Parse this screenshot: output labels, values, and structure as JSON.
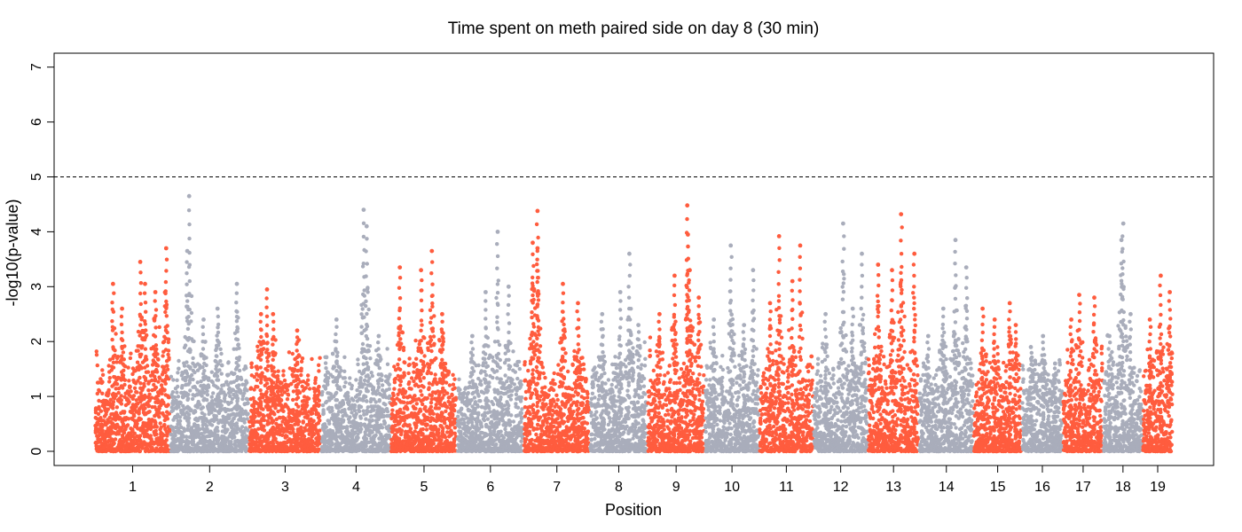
{
  "chart_data": {
    "type": "scatter",
    "title": "Time spent on meth paired side on day 8 (30 min)",
    "xlabel": "Position",
    "ylabel": "-log10(p-value)",
    "ylim": [
      0,
      7
    ],
    "yticks": [
      "0",
      "1",
      "2",
      "3",
      "4",
      "5",
      "6",
      "7"
    ],
    "threshold": 5,
    "threshold_style": "dashed",
    "colors": [
      "#FF5C3E",
      "#A9ADBB"
    ],
    "xlim": [
      0,
      2045
    ],
    "chromosomes": [
      {
        "label": "1",
        "start": 75,
        "end": 200,
        "peaks": [
          {
            "x": 105,
            "y": 3.05
          },
          {
            "x": 120,
            "y": 2.6
          },
          {
            "x": 150,
            "y": 3.45
          },
          {
            "x": 158,
            "y": 3.05
          },
          {
            "x": 175,
            "y": 2.9
          },
          {
            "x": 193,
            "y": 3.7
          }
        ]
      },
      {
        "label": "2",
        "start": 200,
        "end": 330,
        "peaks": [
          {
            "x": 231,
            "y": 4.65
          },
          {
            "x": 228,
            "y": 3.65
          },
          {
            "x": 255,
            "y": 2.4
          },
          {
            "x": 278,
            "y": 2.6
          },
          {
            "x": 310,
            "y": 3.05
          }
        ]
      },
      {
        "label": "3",
        "start": 330,
        "end": 450,
        "peaks": [
          {
            "x": 350,
            "y": 2.5
          },
          {
            "x": 360,
            "y": 2.95
          },
          {
            "x": 370,
            "y": 2.5
          },
          {
            "x": 410,
            "y": 2.2
          }
        ]
      },
      {
        "label": "4",
        "start": 450,
        "end": 565,
        "peaks": [
          {
            "x": 475,
            "y": 2.4
          },
          {
            "x": 520,
            "y": 4.4
          },
          {
            "x": 525,
            "y": 4.1
          },
          {
            "x": 545,
            "y": 2.1
          }
        ]
      },
      {
        "label": "5",
        "start": 565,
        "end": 675,
        "peaks": [
          {
            "x": 580,
            "y": 3.35
          },
          {
            "x": 615,
            "y": 3.3
          },
          {
            "x": 633,
            "y": 3.65
          },
          {
            "x": 650,
            "y": 2.5
          }
        ]
      },
      {
        "label": "6",
        "start": 675,
        "end": 785,
        "peaks": [
          {
            "x": 700,
            "y": 2.1
          },
          {
            "x": 722,
            "y": 2.9
          },
          {
            "x": 742,
            "y": 4.0
          },
          {
            "x": 760,
            "y": 3.0
          }
        ]
      },
      {
        "label": "7",
        "start": 785,
        "end": 895,
        "peaks": [
          {
            "x": 800,
            "y": 3.8
          },
          {
            "x": 808,
            "y": 3.7
          },
          {
            "x": 808,
            "y": 4.38
          },
          {
            "x": 850,
            "y": 3.05
          },
          {
            "x": 875,
            "y": 2.7
          }
        ]
      },
      {
        "label": "8",
        "start": 895,
        "end": 990,
        "peaks": [
          {
            "x": 915,
            "y": 2.5
          },
          {
            "x": 945,
            "y": 2.9
          },
          {
            "x": 960,
            "y": 3.6
          },
          {
            "x": 975,
            "y": 2.3
          }
        ]
      },
      {
        "label": "9",
        "start": 990,
        "end": 1085,
        "peaks": [
          {
            "x": 1010,
            "y": 2.5
          },
          {
            "x": 1035,
            "y": 3.2
          },
          {
            "x": 1056,
            "y": 4.48
          },
          {
            "x": 1057,
            "y": 3.95
          },
          {
            "x": 1060,
            "y": 3.3
          },
          {
            "x": 1075,
            "y": 2.8
          }
        ]
      },
      {
        "label": "10",
        "start": 1085,
        "end": 1175,
        "peaks": [
          {
            "x": 1100,
            "y": 2.4
          },
          {
            "x": 1128,
            "y": 3.75
          },
          {
            "x": 1150,
            "y": 2.3
          },
          {
            "x": 1165,
            "y": 3.3
          }
        ]
      },
      {
        "label": "11",
        "start": 1175,
        "end": 1265,
        "peaks": [
          {
            "x": 1193,
            "y": 2.7
          },
          {
            "x": 1208,
            "y": 3.92
          },
          {
            "x": 1230,
            "y": 3.1
          },
          {
            "x": 1243,
            "y": 3.75
          }
        ]
      },
      {
        "label": "12",
        "start": 1265,
        "end": 1355,
        "peaks": [
          {
            "x": 1285,
            "y": 2.5
          },
          {
            "x": 1314,
            "y": 4.15
          },
          {
            "x": 1330,
            "y": 2.6
          },
          {
            "x": 1345,
            "y": 3.6
          }
        ]
      },
      {
        "label": "13",
        "start": 1355,
        "end": 1440,
        "peaks": [
          {
            "x": 1372,
            "y": 3.4
          },
          {
            "x": 1395,
            "y": 3.3
          },
          {
            "x": 1410,
            "y": 4.32
          },
          {
            "x": 1432,
            "y": 3.6
          }
        ]
      },
      {
        "label": "14",
        "start": 1440,
        "end": 1530,
        "peaks": [
          {
            "x": 1455,
            "y": 2.1
          },
          {
            "x": 1480,
            "y": 2.6
          },
          {
            "x": 1500,
            "y": 3.85
          },
          {
            "x": 1518,
            "y": 3.35
          }
        ]
      },
      {
        "label": "15",
        "start": 1530,
        "end": 1610,
        "peaks": [
          {
            "x": 1545,
            "y": 2.6
          },
          {
            "x": 1565,
            "y": 2.4
          },
          {
            "x": 1590,
            "y": 2.7
          },
          {
            "x": 1600,
            "y": 2.3
          }
        ]
      },
      {
        "label": "16",
        "start": 1610,
        "end": 1678,
        "peaks": [
          {
            "x": 1625,
            "y": 1.9
          },
          {
            "x": 1645,
            "y": 2.1
          },
          {
            "x": 1665,
            "y": 1.6
          }
        ]
      },
      {
        "label": "17",
        "start": 1678,
        "end": 1745,
        "peaks": [
          {
            "x": 1692,
            "y": 2.4
          },
          {
            "x": 1705,
            "y": 2.85
          },
          {
            "x": 1730,
            "y": 2.8
          }
        ]
      },
      {
        "label": "18",
        "start": 1745,
        "end": 1810,
        "peaks": [
          {
            "x": 1755,
            "y": 2.1
          },
          {
            "x": 1778,
            "y": 4.15
          },
          {
            "x": 1775,
            "y": 3.85
          },
          {
            "x": 1790,
            "y": 2.5
          }
        ]
      },
      {
        "label": "19",
        "start": 1810,
        "end": 1860,
        "peaks": [
          {
            "x": 1822,
            "y": 2.4
          },
          {
            "x": 1840,
            "y": 3.2
          },
          {
            "x": 1855,
            "y": 2.9
          }
        ]
      }
    ]
  }
}
